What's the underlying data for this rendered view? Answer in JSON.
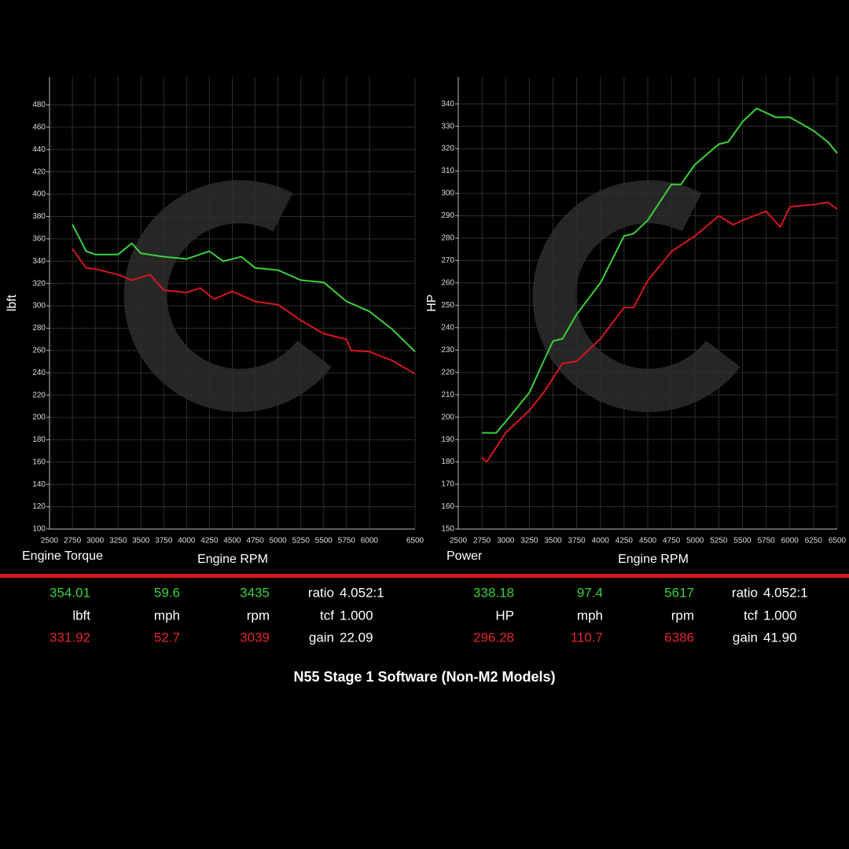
{
  "chart_data": [
    {
      "type": "line",
      "title": "Engine Torque",
      "xlabel": "Engine RPM",
      "ylabel": "lbft",
      "xlim": [
        2500,
        6500
      ],
      "xticks": [
        2500,
        2750,
        3000,
        3250,
        3500,
        3750,
        4000,
        4250,
        4500,
        4750,
        5000,
        5250,
        5500,
        5750,
        6000,
        6500
      ],
      "ylim": [
        100,
        505
      ],
      "yticks": [
        100,
        120,
        140,
        160,
        180,
        200,
        220,
        240,
        260,
        280,
        300,
        320,
        340,
        360,
        380,
        400,
        420,
        440,
        460,
        480
      ],
      "grid": true,
      "series": [
        {
          "color": "#3ad13a",
          "x": [
            2750,
            2900,
            3000,
            3250,
            3400,
            3500,
            3750,
            4000,
            4250,
            4400,
            4600,
            4750,
            5000,
            5250,
            5500,
            5750,
            6000,
            6250,
            6500
          ],
          "values": [
            373,
            349,
            346,
            346,
            356,
            347,
            344,
            342,
            349,
            340,
            344,
            334,
            332,
            323,
            321,
            304,
            295,
            279,
            259
          ]
        },
        {
          "color": "#d4181c",
          "x": [
            2750,
            2900,
            3000,
            3250,
            3400,
            3600,
            3750,
            4000,
            4150,
            4300,
            4500,
            4750,
            5000,
            5250,
            5500,
            5750,
            5800,
            6000,
            6250,
            6500
          ],
          "values": [
            351,
            334,
            333,
            328,
            323,
            328,
            314,
            312,
            316,
            306,
            313,
            304,
            301,
            287,
            275,
            270,
            260,
            259,
            251,
            239
          ]
        }
      ]
    },
    {
      "type": "line",
      "title": "Power",
      "xlabel": "Engine RPM",
      "ylabel": "HP",
      "xlim": [
        2500,
        6500
      ],
      "xticks": [
        2500,
        2750,
        3000,
        3250,
        3500,
        3750,
        4000,
        4250,
        4500,
        4750,
        5000,
        5250,
        5500,
        5750,
        6000,
        6250,
        6500
      ],
      "ylim": [
        150,
        352
      ],
      "yticks": [
        150,
        160,
        170,
        180,
        190,
        200,
        210,
        220,
        230,
        240,
        250,
        260,
        270,
        280,
        290,
        300,
        310,
        320,
        330,
        340
      ],
      "grid": true,
      "series": [
        {
          "color": "#3ad13a",
          "x": [
            2750,
            2900,
            3000,
            3250,
            3400,
            3500,
            3600,
            3750,
            4000,
            4250,
            4350,
            4500,
            4750,
            4850,
            5000,
            5250,
            5350,
            5500,
            5650,
            5750,
            5850,
            6000,
            6250,
            6400,
            6500
          ],
          "values": [
            193,
            193,
            198,
            211,
            225,
            234,
            235,
            246,
            260,
            281,
            282,
            288,
            304,
            304,
            313,
            322,
            323,
            332,
            338,
            336,
            334,
            334,
            328,
            323,
            318
          ]
        },
        {
          "color": "#d4181c",
          "x": [
            2750,
            2800,
            3000,
            3250,
            3400,
            3600,
            3750,
            4000,
            4250,
            4350,
            4500,
            4750,
            5000,
            5250,
            5400,
            5500,
            5750,
            5900,
            6000,
            6250,
            6400,
            6500
          ],
          "values": [
            182,
            180,
            193,
            203,
            211,
            224,
            225,
            235,
            249,
            249,
            261,
            274,
            281,
            290,
            286,
            288,
            292,
            285,
            294,
            295,
            296,
            293
          ]
        }
      ]
    }
  ],
  "stats": [
    {
      "green": [
        "354.01",
        "59.6",
        "3435"
      ],
      "units": [
        "lbft",
        "mph",
        "rpm"
      ],
      "red": [
        "331.92",
        "52.7",
        "3039"
      ],
      "info": [
        [
          "ratio",
          "4.052:1"
        ],
        [
          "tcf",
          "1.000"
        ],
        [
          "gain",
          "22.09"
        ]
      ]
    },
    {
      "green": [
        "338.18",
        "97.4",
        "5617"
      ],
      "units": [
        "HP",
        "mph",
        "rpm"
      ],
      "red": [
        "296.28",
        "110.7",
        "6386"
      ],
      "info": [
        [
          "ratio",
          "4.052:1"
        ],
        [
          "tcf",
          "1.000"
        ],
        [
          "gain",
          "41.90"
        ]
      ]
    }
  ],
  "footer": "N55 Stage 1 Software (Non-M2 Models)"
}
